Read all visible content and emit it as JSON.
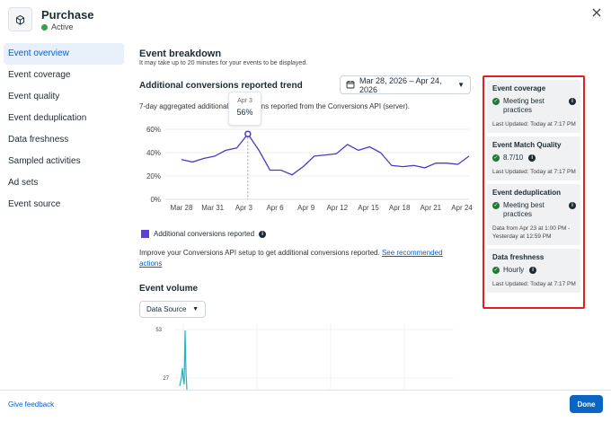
{
  "header": {
    "title": "Purchase",
    "status": "Active",
    "icon": "box-icon"
  },
  "sidebar": {
    "items": [
      {
        "label": "Event overview",
        "active": true
      },
      {
        "label": "Event coverage"
      },
      {
        "label": "Event quality"
      },
      {
        "label": "Event deduplication"
      },
      {
        "label": "Data freshness"
      },
      {
        "label": "Sampled activities"
      },
      {
        "label": "Ad sets"
      },
      {
        "label": "Event source"
      }
    ]
  },
  "breakdown": {
    "title": "Event breakdown",
    "subtitle": "It may take up to 20 minutes for your events to be displayed."
  },
  "trend": {
    "title": "Additional conversions reported trend",
    "subtitle": "7-day aggregated additional conversions reported from the Conversions API (server).",
    "date_range": "Mar 28, 2026 – Apr 24, 2026",
    "tooltip_date": "Apr 3",
    "tooltip_value": "56%",
    "legend": "Additional conversions reported",
    "improve_text": "Improve your Conversions API setup to get additional conversions reported.",
    "improve_link": "See recommended actions"
  },
  "volume": {
    "title": "Event volume",
    "data_source_label": "Data Source",
    "ytick_top": "53",
    "ytick_mid": "27"
  },
  "panel": {
    "coverage": {
      "title": "Event coverage",
      "status": "Meeting best practices",
      "meta": "Last Updated: Today at 7:17 PM"
    },
    "emq": {
      "title": "Event Match Quality",
      "status": "8.7/10",
      "meta": "Last Updated: Today at 7:17 PM"
    },
    "dedup": {
      "title": "Event deduplication",
      "status": "Meeting best practices",
      "meta": "Data from Apr 23 at 1:00 PM - Yesterday at 12:59 PM"
    },
    "freshness": {
      "title": "Data freshness",
      "status": "Hourly",
      "meta": "Last Updated: Today at 7:17 PM"
    }
  },
  "footer": {
    "feedback": "Give feedback",
    "done": "Done"
  },
  "colors": {
    "accent": "#0a66c2",
    "series": "#4b3bc4",
    "highlight_border": "#e02020",
    "ok_green": "#1f7a36"
  },
  "chart_data": {
    "type": "line",
    "ylabels": [
      "60%",
      "40%",
      "20%",
      "0%"
    ],
    "ylim": [
      0,
      60
    ],
    "xticks": [
      "Mar 28",
      "Mar 31",
      "Apr 3",
      "Apr 6",
      "Apr 9",
      "Apr 12",
      "Apr 15",
      "Apr 18",
      "Apr 21",
      "Apr 24"
    ],
    "series": [
      {
        "name": "Additional conversions reported",
        "values": [
          34,
          32,
          35,
          37,
          42,
          44,
          56,
          42,
          25,
          25,
          21,
          28,
          37,
          38,
          39,
          47,
          42,
          45,
          40,
          29,
          28,
          29,
          27,
          31,
          31,
          30,
          37
        ]
      }
    ],
    "highlight_index": 6
  }
}
